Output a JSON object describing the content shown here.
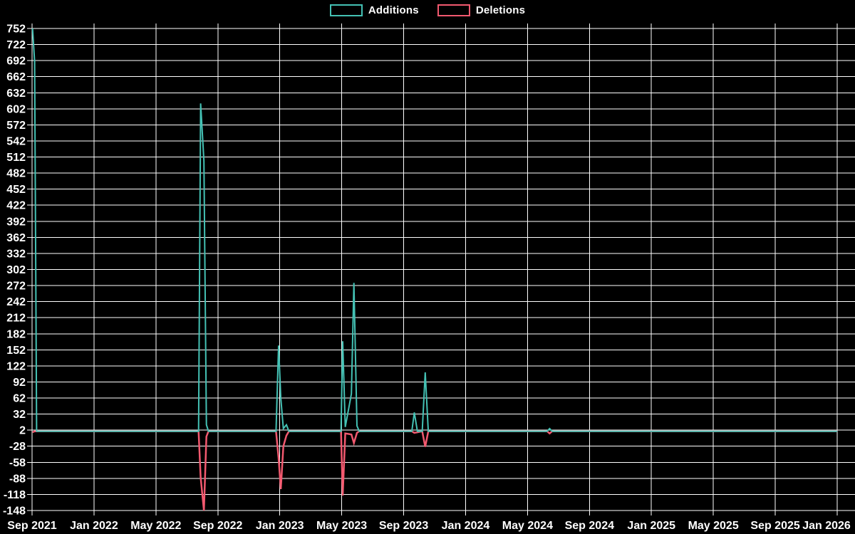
{
  "legend": {
    "items": [
      {
        "label": "Additions",
        "series": "additions"
      },
      {
        "label": "Deletions",
        "series": "deletions"
      }
    ]
  },
  "colors": {
    "additions": "#44c1b4",
    "deletions": "#f2596f",
    "grid": "#ffffff",
    "text": "#ffffff",
    "background": "#000000"
  },
  "chart_data": {
    "type": "line",
    "title": "",
    "legend_position": "top-center",
    "grid": true,
    "x_axis": {
      "start": "2021-09",
      "total_months": 52,
      "tick_interval_months": 4,
      "tick_labels": [
        "Sep 2021",
        "Jan 2022",
        "May 2022",
        "Sep 2022",
        "Jan 2023",
        "May 2023",
        "Sep 2023",
        "Jan 2024",
        "May 2024",
        "Sep 2024",
        "Jan 2025",
        "May 2025",
        "Sep 2025",
        "Jan 2026"
      ]
    },
    "y_axis": {
      "min": -148,
      "max": 752,
      "tick_step": 30,
      "tick_values": [
        752,
        722,
        692,
        662,
        632,
        602,
        572,
        542,
        512,
        482,
        452,
        422,
        392,
        362,
        332,
        302,
        272,
        242,
        212,
        182,
        152,
        122,
        92,
        62,
        32,
        2,
        -28,
        -58,
        -88,
        -118,
        -148
      ]
    },
    "series_names": [
      "Additions",
      "Deletions"
    ],
    "points": [
      {
        "date": "2021-09-02",
        "additions": 752,
        "deletions": -2
      },
      {
        "date": "2021-09-06",
        "additions": 690,
        "deletions": 0
      },
      {
        "date": "2021-09-10",
        "additions": 0,
        "deletions": 0
      },
      {
        "date": "2022-07-24",
        "additions": 0,
        "deletions": 0
      },
      {
        "date": "2022-07-28",
        "additions": 612,
        "deletions": -86
      },
      {
        "date": "2022-08-04",
        "additions": 505,
        "deletions": -148
      },
      {
        "date": "2022-08-09",
        "additions": 12,
        "deletions": -10
      },
      {
        "date": "2022-08-13",
        "additions": 0,
        "deletions": 0
      },
      {
        "date": "2022-12-24",
        "additions": 0,
        "deletions": 0
      },
      {
        "date": "2022-12-29",
        "additions": 160,
        "deletions": -50
      },
      {
        "date": "2023-01-03",
        "additions": 62,
        "deletions": -108
      },
      {
        "date": "2023-01-08",
        "additions": 5,
        "deletions": -28
      },
      {
        "date": "2023-01-14",
        "additions": 12,
        "deletions": -8
      },
      {
        "date": "2023-01-19",
        "additions": 0,
        "deletions": 0
      },
      {
        "date": "2023-04-30",
        "additions": 0,
        "deletions": 0
      },
      {
        "date": "2023-05-03",
        "additions": 168,
        "deletions": -120
      },
      {
        "date": "2023-05-08",
        "additions": 8,
        "deletions": -4
      },
      {
        "date": "2023-05-20",
        "additions": 70,
        "deletions": -6
      },
      {
        "date": "2023-05-25",
        "additions": 277,
        "deletions": -22
      },
      {
        "date": "2023-05-31",
        "additions": 10,
        "deletions": -3
      },
      {
        "date": "2023-06-05",
        "additions": 0,
        "deletions": 0
      },
      {
        "date": "2023-09-17",
        "additions": 0,
        "deletions": 0
      },
      {
        "date": "2023-09-22",
        "additions": 35,
        "deletions": -3
      },
      {
        "date": "2023-09-28",
        "additions": 0,
        "deletions": -2
      },
      {
        "date": "2023-10-07",
        "additions": 0,
        "deletions": 0
      },
      {
        "date": "2023-10-13",
        "additions": 110,
        "deletions": -29
      },
      {
        "date": "2023-10-19",
        "additions": 0,
        "deletions": 0
      },
      {
        "date": "2024-06-09",
        "additions": 0,
        "deletions": 0
      },
      {
        "date": "2024-06-14",
        "additions": 5,
        "deletions": -4
      },
      {
        "date": "2024-06-19",
        "additions": 0,
        "deletions": 0
      },
      {
        "date": "2026-01-01",
        "additions": 0,
        "deletions": 0
      }
    ]
  }
}
